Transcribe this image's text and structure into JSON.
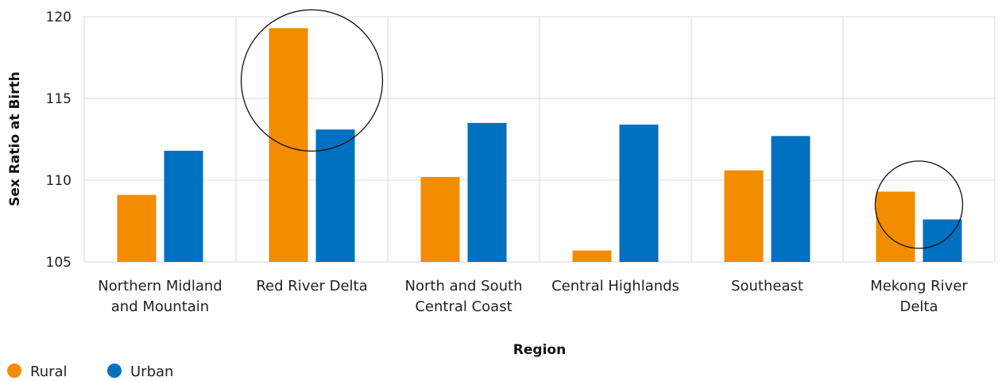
{
  "chart_data": {
    "type": "bar",
    "xlabel": "Region",
    "ylabel": "Sex Ratio at Birth",
    "ylim": [
      105,
      120
    ],
    "yticks": [
      105,
      110,
      115,
      120
    ],
    "grid": true,
    "legend_position": "bottom-left",
    "categories": [
      [
        "Northern Midland",
        "and Mountain"
      ],
      [
        "Red River Delta"
      ],
      [
        "North and South",
        "Central Coast"
      ],
      [
        "Central Highlands"
      ],
      [
        "Southeast"
      ],
      [
        "Mekong River",
        "Delta"
      ]
    ],
    "series": [
      {
        "name": "Rural",
        "color": "#F28C00",
        "values": [
          109.1,
          119.3,
          110.2,
          105.7,
          110.6,
          109.3
        ]
      },
      {
        "name": "Urban",
        "color": "#0070C0",
        "values": [
          111.8,
          113.1,
          113.5,
          113.4,
          112.7,
          107.6
        ]
      }
    ],
    "annotations": [
      {
        "type": "circle",
        "category_index": 1,
        "value": 116.1
      },
      {
        "type": "circle",
        "category_index": 5,
        "value": 108.5
      }
    ]
  }
}
